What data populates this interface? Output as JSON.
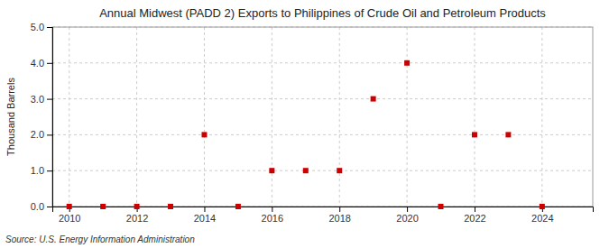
{
  "chart_data": {
    "type": "scatter",
    "title": "Annual Midwest (PADD 2) Exports to Philippines of Crude Oil and Petroleum Products",
    "ylabel": "Thousand Barrels",
    "source": "Source: U.S. Energy Information Administration",
    "x": [
      2010,
      2011,
      2012,
      2013,
      2014,
      2015,
      2016,
      2017,
      2018,
      2019,
      2020,
      2021,
      2022,
      2023,
      2024
    ],
    "values": [
      0,
      0,
      0,
      0,
      2.0,
      0,
      1.0,
      1.0,
      1.0,
      3.0,
      4.0,
      0,
      2.0,
      2.0,
      0
    ],
    "xlim": [
      2009.5,
      2025.5
    ],
    "ylim": [
      0,
      5.0
    ],
    "xticks": [
      2010,
      2012,
      2014,
      2016,
      2018,
      2020,
      2022,
      2024
    ],
    "yticks": [
      {
        "value": 0.0,
        "label": "0.0"
      },
      {
        "value": 1.0,
        "label": "1.0"
      },
      {
        "value": 2.0,
        "label": "2.0"
      },
      {
        "value": 3.0,
        "label": "3.0"
      },
      {
        "value": 4.0,
        "label": "4.0"
      },
      {
        "value": 5.0,
        "label": "5.0"
      }
    ],
    "color": "#cc0000",
    "marker": "square",
    "grid": true
  }
}
